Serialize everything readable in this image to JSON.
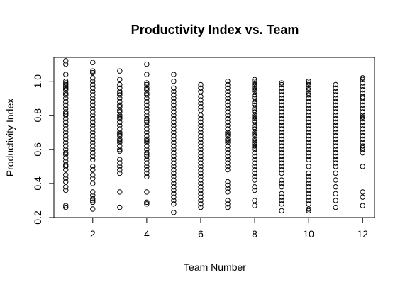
{
  "chart_data": {
    "type": "scatter",
    "title": "Productivity Index vs. Team",
    "xlabel": "Team Number",
    "ylabel": "Productivity Index",
    "xlim": [
      0.56,
      12.44
    ],
    "ylim": [
      0.2,
      1.14
    ],
    "x_ticks": [
      2,
      4,
      6,
      8,
      10,
      12
    ],
    "y_ticks": [
      0.2,
      0.4,
      0.6,
      0.8,
      1.0
    ],
    "y_tick_labels": [
      "0.2",
      "0.4",
      "0.6",
      "0.8",
      "1.0"
    ],
    "grid": false,
    "legend": "none",
    "marker": "open-circle",
    "series": [
      {
        "x": [
          1,
          1,
          1,
          1,
          1,
          1,
          1,
          1,
          1,
          1,
          1,
          1,
          1,
          1,
          1,
          1,
          1,
          1,
          1,
          1,
          1,
          1,
          1,
          1,
          1,
          1,
          1,
          1,
          1,
          1,
          1,
          1,
          1,
          1,
          1,
          1,
          1,
          1,
          1,
          1,
          1,
          1
        ],
        "y": [
          1.12,
          1.1,
          1.04,
          1.0,
          0.99,
          0.98,
          0.97,
          0.96,
          0.95,
          0.93,
          0.92,
          0.9,
          0.88,
          0.86,
          0.84,
          0.82,
          0.81,
          0.8,
          0.78,
          0.76,
          0.74,
          0.72,
          0.7,
          0.68,
          0.66,
          0.64,
          0.62,
          0.6,
          0.58,
          0.57,
          0.55,
          0.53,
          0.51,
          0.5,
          0.48,
          0.45,
          0.43,
          0.41,
          0.38,
          0.36,
          0.27,
          0.26
        ]
      },
      {
        "x": [
          2,
          2,
          2,
          2,
          2,
          2,
          2,
          2,
          2,
          2,
          2,
          2,
          2,
          2,
          2,
          2,
          2,
          2,
          2,
          2,
          2,
          2,
          2,
          2,
          2,
          2,
          2,
          2,
          2,
          2,
          2,
          2,
          2,
          2,
          2,
          2,
          2,
          2,
          2
        ],
        "y": [
          1.11,
          1.06,
          1.05,
          1.02,
          1.0,
          0.98,
          0.96,
          0.94,
          0.92,
          0.9,
          0.88,
          0.86,
          0.84,
          0.82,
          0.8,
          0.78,
          0.76,
          0.74,
          0.72,
          0.7,
          0.68,
          0.66,
          0.64,
          0.62,
          0.6,
          0.58,
          0.56,
          0.54,
          0.5,
          0.48,
          0.45,
          0.43,
          0.4,
          0.35,
          0.33,
          0.31,
          0.3,
          0.29,
          0.25
        ]
      },
      {
        "x": [
          3,
          3,
          3,
          3,
          3,
          3,
          3,
          3,
          3,
          3,
          3,
          3,
          3,
          3,
          3,
          3,
          3,
          3,
          3,
          3,
          3,
          3,
          3,
          3,
          3,
          3,
          3,
          3,
          3,
          3,
          3,
          3,
          3,
          3,
          3
        ],
        "y": [
          1.06,
          1.01,
          0.98,
          0.96,
          0.94,
          0.93,
          0.92,
          0.9,
          0.88,
          0.86,
          0.85,
          0.83,
          0.82,
          0.8,
          0.79,
          0.78,
          0.76,
          0.74,
          0.72,
          0.7,
          0.69,
          0.68,
          0.66,
          0.65,
          0.64,
          0.62,
          0.6,
          0.59,
          0.54,
          0.52,
          0.5,
          0.48,
          0.46,
          0.35,
          0.26
        ]
      },
      {
        "x": [
          4,
          4,
          4,
          4,
          4,
          4,
          4,
          4,
          4,
          4,
          4,
          4,
          4,
          4,
          4,
          4,
          4,
          4,
          4,
          4,
          4,
          4,
          4,
          4,
          4,
          4,
          4,
          4,
          4,
          4,
          4,
          4,
          4,
          4,
          4,
          4,
          4,
          4
        ],
        "y": [
          1.1,
          1.04,
          0.99,
          0.98,
          0.96,
          0.95,
          0.93,
          0.92,
          0.9,
          0.88,
          0.86,
          0.84,
          0.82,
          0.8,
          0.78,
          0.77,
          0.76,
          0.74,
          0.72,
          0.7,
          0.68,
          0.66,
          0.65,
          0.64,
          0.62,
          0.6,
          0.58,
          0.57,
          0.56,
          0.54,
          0.52,
          0.5,
          0.48,
          0.46,
          0.44,
          0.35,
          0.29,
          0.28
        ]
      },
      {
        "x": [
          5,
          5,
          5,
          5,
          5,
          5,
          5,
          5,
          5,
          5,
          5,
          5,
          5,
          5,
          5,
          5,
          5,
          5,
          5,
          5,
          5,
          5,
          5,
          5,
          5,
          5,
          5,
          5,
          5,
          5,
          5,
          5,
          5,
          5,
          5,
          5,
          5,
          5
        ],
        "y": [
          1.04,
          1.0,
          0.96,
          0.94,
          0.92,
          0.9,
          0.88,
          0.86,
          0.84,
          0.82,
          0.8,
          0.78,
          0.76,
          0.74,
          0.72,
          0.7,
          0.68,
          0.66,
          0.64,
          0.62,
          0.6,
          0.58,
          0.56,
          0.54,
          0.52,
          0.5,
          0.48,
          0.46,
          0.44,
          0.42,
          0.4,
          0.38,
          0.36,
          0.34,
          0.32,
          0.3,
          0.28,
          0.23
        ]
      },
      {
        "x": [
          6,
          6,
          6,
          6,
          6,
          6,
          6,
          6,
          6,
          6,
          6,
          6,
          6,
          6,
          6,
          6,
          6,
          6,
          6,
          6,
          6,
          6,
          6,
          6,
          6,
          6,
          6,
          6,
          6,
          6,
          6,
          6,
          6,
          6,
          6,
          6
        ],
        "y": [
          0.98,
          0.96,
          0.94,
          0.91,
          0.89,
          0.87,
          0.85,
          0.83,
          0.8,
          0.78,
          0.76,
          0.74,
          0.72,
          0.7,
          0.68,
          0.66,
          0.64,
          0.62,
          0.6,
          0.58,
          0.56,
          0.54,
          0.52,
          0.5,
          0.48,
          0.46,
          0.44,
          0.42,
          0.4,
          0.38,
          0.36,
          0.34,
          0.32,
          0.3,
          0.28,
          0.26
        ]
      },
      {
        "x": [
          7,
          7,
          7,
          7,
          7,
          7,
          7,
          7,
          7,
          7,
          7,
          7,
          7,
          7,
          7,
          7,
          7,
          7,
          7,
          7,
          7,
          7,
          7,
          7,
          7,
          7,
          7,
          7,
          7,
          7,
          7,
          7,
          7,
          7,
          7,
          7
        ],
        "y": [
          1.0,
          0.98,
          0.96,
          0.94,
          0.92,
          0.9,
          0.88,
          0.86,
          0.84,
          0.82,
          0.8,
          0.78,
          0.76,
          0.74,
          0.72,
          0.7,
          0.69,
          0.68,
          0.66,
          0.65,
          0.64,
          0.62,
          0.6,
          0.58,
          0.56,
          0.54,
          0.52,
          0.5,
          0.48,
          0.41,
          0.39,
          0.37,
          0.35,
          0.3,
          0.28,
          0.26
        ]
      },
      {
        "x": [
          8,
          8,
          8,
          8,
          8,
          8,
          8,
          8,
          8,
          8,
          8,
          8,
          8,
          8,
          8,
          8,
          8,
          8,
          8,
          8,
          8,
          8,
          8,
          8,
          8,
          8,
          8,
          8,
          8,
          8,
          8,
          8,
          8,
          8,
          8,
          8,
          8,
          8,
          8,
          8,
          8,
          8,
          8,
          8,
          8,
          8,
          8,
          8
        ],
        "y": [
          1.01,
          1.0,
          0.99,
          0.98,
          0.97,
          0.96,
          0.95,
          0.94,
          0.92,
          0.91,
          0.9,
          0.88,
          0.87,
          0.86,
          0.84,
          0.83,
          0.82,
          0.8,
          0.79,
          0.78,
          0.77,
          0.76,
          0.74,
          0.73,
          0.72,
          0.7,
          0.69,
          0.68,
          0.66,
          0.65,
          0.64,
          0.63,
          0.62,
          0.61,
          0.6,
          0.58,
          0.56,
          0.54,
          0.52,
          0.5,
          0.48,
          0.46,
          0.44,
          0.42,
          0.38,
          0.36,
          0.3,
          0.27
        ]
      },
      {
        "x": [
          9,
          9,
          9,
          9,
          9,
          9,
          9,
          9,
          9,
          9,
          9,
          9,
          9,
          9,
          9,
          9,
          9,
          9,
          9,
          9,
          9,
          9,
          9,
          9,
          9,
          9,
          9,
          9,
          9,
          9,
          9,
          9,
          9,
          9,
          9,
          9
        ],
        "y": [
          0.99,
          0.98,
          0.96,
          0.94,
          0.92,
          0.9,
          0.88,
          0.86,
          0.84,
          0.82,
          0.8,
          0.78,
          0.76,
          0.74,
          0.72,
          0.7,
          0.68,
          0.66,
          0.64,
          0.62,
          0.6,
          0.58,
          0.56,
          0.54,
          0.52,
          0.5,
          0.48,
          0.46,
          0.42,
          0.4,
          0.38,
          0.34,
          0.32,
          0.3,
          0.28,
          0.24
        ]
      },
      {
        "x": [
          10,
          10,
          10,
          10,
          10,
          10,
          10,
          10,
          10,
          10,
          10,
          10,
          10,
          10,
          10,
          10,
          10,
          10,
          10,
          10,
          10,
          10,
          10,
          10,
          10,
          10,
          10,
          10,
          10,
          10,
          10,
          10,
          10,
          10,
          10,
          10,
          10,
          10,
          10
        ],
        "y": [
          1.0,
          0.99,
          0.98,
          0.96,
          0.95,
          0.93,
          0.92,
          0.9,
          0.88,
          0.86,
          0.84,
          0.82,
          0.8,
          0.78,
          0.76,
          0.74,
          0.72,
          0.7,
          0.68,
          0.66,
          0.64,
          0.62,
          0.6,
          0.58,
          0.56,
          0.54,
          0.5,
          0.46,
          0.44,
          0.42,
          0.4,
          0.38,
          0.36,
          0.34,
          0.32,
          0.3,
          0.28,
          0.25,
          0.24
        ]
      },
      {
        "x": [
          11,
          11,
          11,
          11,
          11,
          11,
          11,
          11,
          11,
          11,
          11,
          11,
          11,
          11,
          11,
          11,
          11,
          11,
          11,
          11,
          11,
          11,
          11,
          11,
          11,
          11,
          11,
          11,
          11,
          11,
          11
        ],
        "y": [
          0.98,
          0.96,
          0.94,
          0.92,
          0.9,
          0.88,
          0.86,
          0.84,
          0.82,
          0.8,
          0.78,
          0.76,
          0.74,
          0.72,
          0.7,
          0.68,
          0.66,
          0.64,
          0.62,
          0.6,
          0.58,
          0.56,
          0.54,
          0.52,
          0.5,
          0.46,
          0.42,
          0.38,
          0.34,
          0.3,
          0.26
        ]
      },
      {
        "x": [
          12,
          12,
          12,
          12,
          12,
          12,
          12,
          12,
          12,
          12,
          12,
          12,
          12,
          12,
          12,
          12,
          12,
          12,
          12,
          12,
          12,
          12,
          12,
          12,
          12,
          12,
          12,
          12,
          12,
          12
        ],
        "y": [
          1.02,
          1.01,
          0.99,
          0.97,
          0.95,
          0.93,
          0.91,
          0.9,
          0.88,
          0.86,
          0.84,
          0.82,
          0.8,
          0.79,
          0.78,
          0.76,
          0.74,
          0.72,
          0.7,
          0.68,
          0.66,
          0.64,
          0.62,
          0.61,
          0.6,
          0.58,
          0.5,
          0.35,
          0.32,
          0.27
        ]
      }
    ]
  }
}
